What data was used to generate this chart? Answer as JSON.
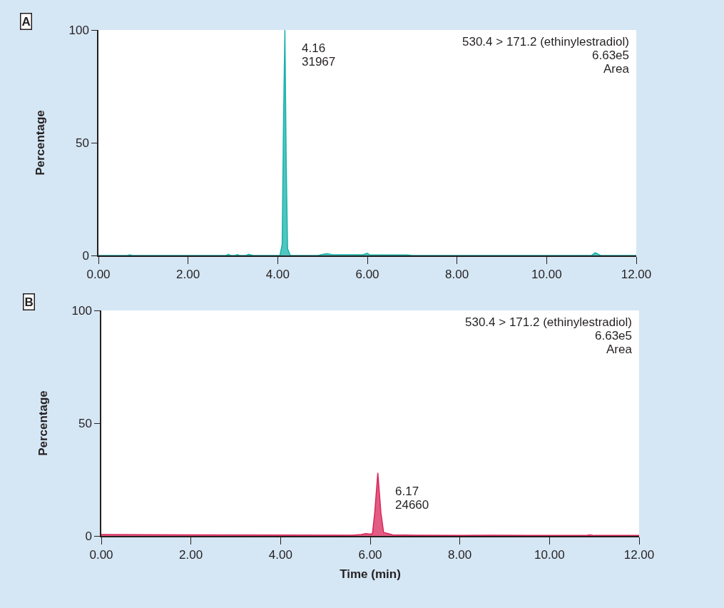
{
  "chart_data": [
    {
      "type": "area",
      "ylabel": "Percentage",
      "xlim": [
        0,
        12
      ],
      "ylim": [
        0,
        100
      ],
      "xticks": [
        {
          "value": 0,
          "label": "0.00"
        },
        {
          "value": 2,
          "label": "2.00"
        },
        {
          "value": 4,
          "label": "4.00"
        },
        {
          "value": 6,
          "label": "6.00"
        },
        {
          "value": 8,
          "label": "8.00"
        },
        {
          "value": 10,
          "label": "10.00"
        },
        {
          "value": 12,
          "label": "12.00"
        }
      ],
      "yticks": [
        0,
        50,
        100
      ],
      "grid": false,
      "series": [
        {
          "color": "#17b2aa",
          "x": [
            0,
            0.65,
            0.7,
            0.75,
            2.85,
            2.9,
            2.95,
            3.05,
            3.1,
            3.15,
            3.3,
            3.35,
            3.45,
            4.05,
            4.1,
            4.13,
            4.16,
            4.19,
            4.22,
            4.28,
            4.9,
            5.0,
            5.1,
            5.2,
            5.9,
            6.0,
            6.05,
            6.2,
            6.9,
            7.0,
            11.0,
            11.08,
            11.13,
            11.2,
            12
          ],
          "values": [
            0,
            0,
            0.3,
            0,
            0,
            0.5,
            0,
            0,
            0.4,
            0,
            0,
            0.5,
            0,
            0,
            5,
            60,
            100,
            40,
            3,
            0,
            0,
            0.5,
            0.8,
            0.4,
            0.3,
            1,
            0.3,
            0.2,
            0.2,
            0,
            0,
            1.2,
            0.8,
            0,
            0
          ]
        }
      ],
      "annotations": [
        "4.16",
        "31967",
        "530.4 > 171.2 (ethinylestradiol)",
        "6.63e5",
        "Area",
        "A"
      ]
    },
    {
      "type": "area",
      "xlabel": "Time (min)",
      "ylabel": "Percentage",
      "xlim": [
        0,
        12
      ],
      "ylim": [
        0,
        100
      ],
      "xticks": [
        {
          "value": 0,
          "label": "0.00"
        },
        {
          "value": 2,
          "label": "2.00"
        },
        {
          "value": 4,
          "label": "4.00"
        },
        {
          "value": 6,
          "label": "6.00"
        },
        {
          "value": 8,
          "label": "8.00"
        },
        {
          "value": 10,
          "label": "10.00"
        },
        {
          "value": 12,
          "label": "12.00"
        }
      ],
      "yticks": [
        0,
        50,
        100
      ],
      "grid": false,
      "series": [
        {
          "color": "#d8265a",
          "x": [
            0,
            2,
            4,
            5.6,
            5.8,
            5.9,
            6.0,
            6.05,
            6.1,
            6.17,
            6.24,
            6.3,
            6.4,
            6.5,
            7,
            8,
            8.7,
            9.5,
            10.3,
            10.8,
            10.9,
            11,
            12
          ],
          "values": [
            0.6,
            0.5,
            0.4,
            0.3,
            0.6,
            1,
            0.8,
            1,
            10,
            28,
            10,
            1.5,
            1,
            0.5,
            0.3,
            0.2,
            0.3,
            0.2,
            0.2,
            0.2,
            0.5,
            0.2,
            0.2
          ]
        }
      ],
      "annotations": [
        "6.17",
        "24660",
        "530.4 > 171.2 (ethinylestradiol)",
        "6.63e5",
        "Area",
        "B"
      ]
    }
  ]
}
